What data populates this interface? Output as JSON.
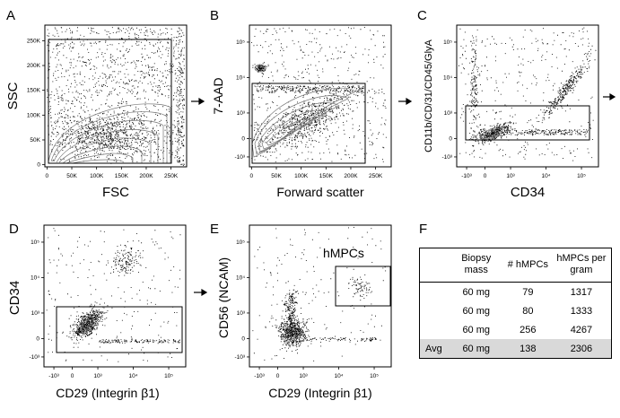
{
  "panels": [
    {
      "letter": "A",
      "xlabel": "FSC",
      "ylabel": "SSC",
      "xticks": [
        "0",
        "50K",
        "100K",
        "150K",
        "200K",
        "250K"
      ],
      "yticks": [
        "0",
        "50K",
        "100K",
        "150K",
        "200K",
        "250K"
      ]
    },
    {
      "letter": "B",
      "xlabel": "Forward scatter",
      "ylabel": "7-AAD",
      "xticks": [
        "0",
        "50K",
        "100K",
        "150K",
        "200K",
        "250K"
      ],
      "yticks": [
        "-10³",
        "0",
        "10³",
        "10⁴",
        "10⁵"
      ]
    },
    {
      "letter": "C",
      "xlabel": "CD34",
      "ylabel": "CD11b/CD/31/CD45/GlyA",
      "xticks": [
        "-10³",
        "0",
        "10³",
        "10⁴",
        "10⁵"
      ],
      "yticks": [
        "-10³",
        "0",
        "10³",
        "10⁴",
        "10⁵"
      ]
    },
    {
      "letter": "D",
      "xlabel": "CD29 (Integrin β1)",
      "ylabel": "CD34",
      "xticks": [
        "-10³",
        "0",
        "10³",
        "10⁴",
        "10⁵"
      ],
      "yticks": [
        "-10³",
        "0",
        "10³",
        "10⁴",
        "10⁵"
      ]
    },
    {
      "letter": "E",
      "xlabel": "CD29 (Integrin β1)",
      "ylabel": "CD56 (NCAM)",
      "xticks": [
        "-10³",
        "0",
        "10³",
        "10⁴",
        "10⁵"
      ],
      "yticks": [
        "-10³",
        "0",
        "10³",
        "10⁴",
        "10⁵"
      ],
      "gate_label": "hMPCs"
    }
  ],
  "table_panel": {
    "letter": "F",
    "headers": [
      "",
      "Biopsy mass",
      "# hMPCs",
      "hMPCs per gram"
    ],
    "rows": [
      [
        "",
        "60 mg",
        "79",
        "1317"
      ],
      [
        "",
        "60 mg",
        "80",
        "1333"
      ],
      [
        "",
        "60 mg",
        "256",
        "4267"
      ],
      [
        "Avg",
        "60 mg",
        "138",
        "2306"
      ]
    ]
  },
  "chart_data": [
    {
      "type": "scatter",
      "panel": "A",
      "xlabel": "FSC",
      "ylabel": "SSC",
      "xlim": [
        0,
        262000
      ],
      "ylim": [
        0,
        262000
      ],
      "gate": {
        "x": [
          1000,
          245000
        ],
        "y": [
          0,
          235000
        ]
      }
    },
    {
      "type": "scatter",
      "panel": "B",
      "xlabel": "Forward scatter",
      "ylabel": "7-AAD",
      "xlim": [
        0,
        262000
      ],
      "ylim": [
        "-10³",
        "10⁵"
      ],
      "gate": {
        "x": [
          3000,
          222000
        ],
        "y": [
          "below 0",
          "~10³·⁷"
        ]
      }
    },
    {
      "type": "scatter",
      "panel": "C",
      "xlabel": "CD34",
      "ylabel": "CD11b/CD/31/CD45/GlyA",
      "xlim": [
        "-10³",
        "10⁵"
      ],
      "ylim": [
        "-10³",
        "10⁵"
      ],
      "gate": {
        "x": [
          "-10³",
          "~10⁵"
        ],
        "y": [
          "~-10²",
          "~10³"
        ]
      }
    },
    {
      "type": "scatter",
      "panel": "D",
      "xlabel": "CD29 (Integrin β1)",
      "ylabel": "CD34",
      "xlim": [
        "-10³",
        "10⁵"
      ],
      "ylim": [
        "-10³",
        "10⁵"
      ],
      "gate": {
        "x": [
          "-10³",
          "~10⁵"
        ],
        "y": [
          "-10³",
          "~10³"
        ]
      }
    },
    {
      "type": "scatter",
      "panel": "E",
      "xlabel": "CD29 (Integrin β1)",
      "ylabel": "CD56 (NCAM)",
      "xlim": [
        "-10³",
        "10⁵"
      ],
      "ylim": [
        "-10³",
        "10⁵"
      ],
      "gate": {
        "x": [
          "~10³·⁷",
          "~10⁵"
        ],
        "y": [
          "~10³",
          "~10⁴·⁵"
        ]
      },
      "gate_label": "hMPCs"
    },
    {
      "type": "table",
      "panel": "F",
      "columns": [
        "",
        "Biopsy mass",
        "# hMPCs",
        "hMPCs per gram"
      ],
      "rows": [
        [
          "",
          "60 mg",
          79,
          1317
        ],
        [
          "",
          "60 mg",
          80,
          1333
        ],
        [
          "",
          "60 mg",
          256,
          4267
        ],
        [
          "Avg",
          "60 mg",
          138,
          2306
        ]
      ]
    }
  ]
}
